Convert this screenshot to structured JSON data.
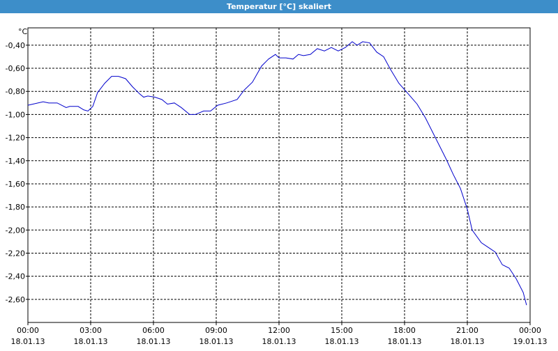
{
  "chart_data": {
    "type": "line",
    "title": "Temperatur [°C] skaliert",
    "y_label": "°C",
    "x": [
      0,
      0.73,
      1.0,
      1.4,
      1.83,
      2.0,
      2.4,
      2.67,
      2.87,
      3.1,
      3.33,
      3.67,
      4.0,
      4.33,
      4.67,
      5.0,
      5.33,
      5.53,
      5.73,
      6.07,
      6.4,
      6.67,
      7.0,
      7.33,
      7.73,
      8.0,
      8.4,
      8.73,
      9.07,
      9.5,
      10.0,
      10.33,
      10.73,
      11.17,
      11.5,
      11.83,
      12.0,
      12.33,
      12.67,
      12.93,
      13.17,
      13.5,
      13.83,
      14.17,
      14.5,
      14.83,
      15.17,
      15.5,
      15.73,
      16.0,
      16.33,
      16.67,
      17.0,
      17.33,
      17.73,
      18.17,
      18.6,
      19.0,
      19.5,
      20.0,
      20.33,
      20.67,
      21.0,
      21.23,
      21.67,
      22.0,
      22.33,
      22.67,
      23.0,
      23.33,
      23.67,
      23.83
    ],
    "series": [
      {
        "name": "Temperatur",
        "color": "#0000cc",
        "values": [
          -0.92,
          -0.89,
          -0.9,
          -0.9,
          -0.94,
          -0.93,
          -0.93,
          -0.96,
          -0.97,
          -0.93,
          -0.81,
          -0.73,
          -0.67,
          -0.67,
          -0.69,
          -0.76,
          -0.82,
          -0.85,
          -0.84,
          -0.85,
          -0.87,
          -0.91,
          -0.9,
          -0.94,
          -1.0,
          -1.0,
          -0.97,
          -0.97,
          -0.92,
          -0.9,
          -0.87,
          -0.79,
          -0.72,
          -0.58,
          -0.52,
          -0.48,
          -0.51,
          -0.51,
          -0.52,
          -0.48,
          -0.49,
          -0.48,
          -0.43,
          -0.45,
          -0.42,
          -0.45,
          -0.42,
          -0.37,
          -0.4,
          -0.37,
          -0.38,
          -0.46,
          -0.5,
          -0.61,
          -0.73,
          -0.82,
          -0.91,
          -1.03,
          -1.21,
          -1.39,
          -1.52,
          -1.64,
          -1.82,
          -2.0,
          -2.11,
          -2.15,
          -2.19,
          -2.3,
          -2.33,
          -2.42,
          -2.54,
          -2.65
        ]
      }
    ],
    "xlim": [
      0,
      24
    ],
    "ylim": [
      -2.8,
      -0.25
    ],
    "xticks": [
      {
        "value": 0,
        "label": "00:00"
      },
      {
        "value": 3,
        "label": "03:00"
      },
      {
        "value": 6,
        "label": "06:00"
      },
      {
        "value": 9,
        "label": "09:00"
      },
      {
        "value": 12,
        "label": "12:00"
      },
      {
        "value": 15,
        "label": "15:00"
      },
      {
        "value": 18,
        "label": "18:00"
      },
      {
        "value": 21,
        "label": "21:00"
      },
      {
        "value": 24,
        "label": "00:00"
      }
    ],
    "xtick_dates": [
      "18.01.13",
      "18.01.13",
      "18.01.13",
      "18.01.13",
      "18.01.13",
      "18.01.13",
      "18.01.13",
      "18.01.13",
      "19.01.13"
    ],
    "yticks": [
      {
        "value": -0.4,
        "label": "-0,40"
      },
      {
        "value": -0.6,
        "label": "-0,60"
      },
      {
        "value": -0.8,
        "label": "-0,80"
      },
      {
        "value": -1.0,
        "label": "-1,00"
      },
      {
        "value": -1.2,
        "label": "-1,20"
      },
      {
        "value": -1.4,
        "label": "-1,40"
      },
      {
        "value": -1.6,
        "label": "-1,60"
      },
      {
        "value": -1.8,
        "label": "-1,80"
      },
      {
        "value": -2.0,
        "label": "-2,00"
      },
      {
        "value": -2.2,
        "label": "-2,20"
      },
      {
        "value": -2.4,
        "label": "-2,40"
      },
      {
        "value": -2.6,
        "label": "-2,60"
      }
    ],
    "grid": true
  }
}
